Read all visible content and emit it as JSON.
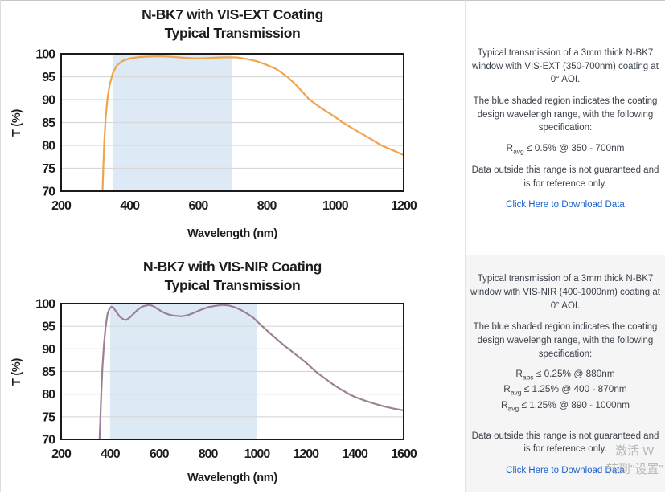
{
  "colors": {
    "page_background": "#ffffff",
    "divider": "#dedede",
    "panel_gray_bg": "#f5f5f6",
    "link_blue": "#1b63cf",
    "chart_border": "#1a1a1a",
    "gridline": "#d8d8d8",
    "vis_ext_line_orange": "#EFA54B",
    "vis_nir_line_purple": "#9C8095",
    "shade_blue": "#DDE9F5",
    "watermark_gray": "#a9a9a9"
  },
  "chart_data": [
    {
      "type": "line",
      "title": "N-BK7 with VIS-EXT Coating",
      "subtitle": "Typical Transmission",
      "xlabel": "Wavelength (nm)",
      "ylabel": "T (%)",
      "xlim": [
        200,
        1200
      ],
      "ylim": [
        70,
        100
      ],
      "x_ticks": [
        200,
        400,
        600,
        800,
        1000,
        1200
      ],
      "y_ticks": [
        70,
        75,
        80,
        85,
        90,
        95,
        100
      ],
      "grid": "horizontal",
      "legend": "none",
      "shaded_region": {
        "x_start": 350,
        "x_end": 700,
        "color": "#DDE9F5",
        "meaning": "coating design wavelength range 350-700nm"
      },
      "line_color": "#EFA54B",
      "series": [
        {
          "name": "VIS-EXT transmission",
          "points": [
            [
              321,
              70
            ],
            [
              323,
              75
            ],
            [
              326,
              81
            ],
            [
              330,
              86
            ],
            [
              335,
              90
            ],
            [
              341,
              93
            ],
            [
              350,
              95.6
            ],
            [
              362,
              97.4
            ],
            [
              378,
              98.4
            ],
            [
              400,
              99.0
            ],
            [
              430,
              99.3
            ],
            [
              460,
              99.4
            ],
            [
              490,
              99.45
            ],
            [
              520,
              99.35
            ],
            [
              555,
              99.15
            ],
            [
              590,
              99.0
            ],
            [
              625,
              99.05
            ],
            [
              660,
              99.2
            ],
            [
              695,
              99.25
            ],
            [
              715,
              99.2
            ],
            [
              740,
              98.9
            ],
            [
              770,
              98.4
            ],
            [
              800,
              97.6
            ],
            [
              830,
              96.6
            ],
            [
              860,
              95.0
            ],
            [
              890,
              92.9
            ],
            [
              925,
              90.0
            ],
            [
              960,
              88.1
            ],
            [
              1000,
              86.2
            ],
            [
              1020,
              85.1
            ],
            [
              1060,
              83.3
            ],
            [
              1100,
              81.6
            ],
            [
              1135,
              80.0
            ],
            [
              1170,
              78.9
            ],
            [
              1200,
              77.9
            ]
          ]
        }
      ]
    },
    {
      "type": "line",
      "title": "N-BK7 with VIS-NIR Coating",
      "subtitle": "Typical Transmission",
      "xlabel": "Wavelength (nm)",
      "ylabel": "T (%)",
      "xlim": [
        200,
        1600
      ],
      "ylim": [
        70,
        100
      ],
      "x_ticks": [
        200,
        400,
        600,
        800,
        1000,
        1200,
        1400,
        1600
      ],
      "y_ticks": [
        70,
        75,
        80,
        85,
        90,
        95,
        100
      ],
      "grid": "horizontal",
      "legend": "none",
      "shaded_region": {
        "x_start": 400,
        "x_end": 1000,
        "color": "#DDE9F5",
        "meaning": "coating design wavelength range 400-1000nm"
      },
      "line_color": "#9C8095",
      "series": [
        {
          "name": "VIS-NIR transmission",
          "points": [
            [
              357,
              70
            ],
            [
              360,
              74
            ],
            [
              364,
              80
            ],
            [
              369,
              86
            ],
            [
              375,
              91
            ],
            [
              382,
              95
            ],
            [
              390,
              97.8
            ],
            [
              398,
              98.9
            ],
            [
              406,
              99.3
            ],
            [
              414,
              99.1
            ],
            [
              425,
              98.2
            ],
            [
              440,
              97.1
            ],
            [
              455,
              96.5
            ],
            [
              466,
              96.4
            ],
            [
              480,
              96.9
            ],
            [
              495,
              97.7
            ],
            [
              512,
              98.6
            ],
            [
              530,
              99.3
            ],
            [
              548,
              99.6
            ],
            [
              562,
              99.7
            ],
            [
              578,
              99.4
            ],
            [
              598,
              98.7
            ],
            [
              620,
              98.0
            ],
            [
              645,
              97.5
            ],
            [
              668,
              97.3
            ],
            [
              692,
              97.2
            ],
            [
              715,
              97.4
            ],
            [
              740,
              97.9
            ],
            [
              770,
              98.6
            ],
            [
              800,
              99.2
            ],
            [
              830,
              99.5
            ],
            [
              858,
              99.7
            ],
            [
              885,
              99.6
            ],
            [
              910,
              99.2
            ],
            [
              935,
              98.6
            ],
            [
              960,
              97.8
            ],
            [
              985,
              96.9
            ],
            [
              1010,
              95.6
            ],
            [
              1045,
              93.9
            ],
            [
              1080,
              92.2
            ],
            [
              1115,
              90.6
            ],
            [
              1130,
              90.0
            ],
            [
              1165,
              88.5
            ],
            [
              1200,
              87.0
            ],
            [
              1240,
              85.0
            ],
            [
              1275,
              83.6
            ],
            [
              1310,
              82.2
            ],
            [
              1345,
              81.0
            ],
            [
              1380,
              79.9
            ],
            [
              1400,
              79.4
            ],
            [
              1440,
              78.6
            ],
            [
              1480,
              77.9
            ],
            [
              1520,
              77.3
            ],
            [
              1560,
              76.8
            ],
            [
              1600,
              76.4
            ]
          ]
        }
      ]
    }
  ],
  "panels": [
    {
      "bg": "#ffffff",
      "paragraph1": "Typical transmission of a 3mm thick N-BK7 window with VIS-EXT (350-700nm) coating at 0° AOI.",
      "paragraph2": "The blue shaded region indicates the coating design wavelengh range, with the following specification:",
      "specs": [
        {
          "base": "R",
          "sub": "avg",
          "text": " ≤ 0.5% @ 350 - 700nm"
        }
      ],
      "paragraph3": "Data outside this range is not guaranteed and is for reference only.",
      "link_text": "Click Here to Download Data"
    },
    {
      "bg": "#f5f5f6",
      "paragraph1": "Typical transmission of a 3mm thick N-BK7 window with VIS-NIR (400-1000nm) coating at 0° AOI.",
      "paragraph2": "The blue shaded region indicates the coating design wavelengh range, with the following specification:",
      "specs": [
        {
          "base": "R",
          "sub": "abs",
          "text": " ≤ 0.25% @ 880nm"
        },
        {
          "base": "R",
          "sub": "avg",
          "text": " ≤ 1.25% @ 400 - 870nm"
        },
        {
          "base": "R",
          "sub": "avg",
          "text": " ≤ 1.25% @ 890 - 1000nm"
        }
      ],
      "paragraph3": "Data outside this range is not guaranteed and is for reference only.",
      "link_text": "Click Here to Download Data"
    }
  ],
  "watermark": {
    "line1": "激活 W",
    "line2": "转到\"设置\""
  }
}
